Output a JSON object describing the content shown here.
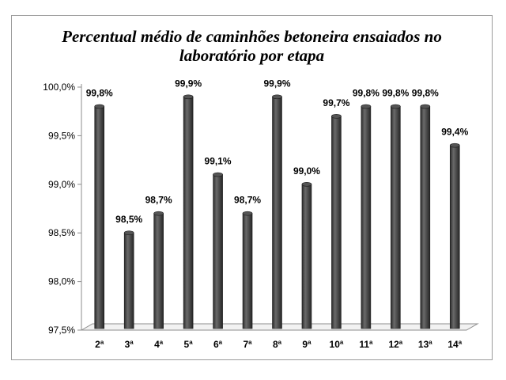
{
  "chart_data": {
    "type": "bar",
    "title_lines": [
      "Percentual médio de caminhões betoneira ensaiados no",
      "laboratório por etapa"
    ],
    "categories": [
      "2ª",
      "3ª",
      "4ª",
      "5ª",
      "6ª",
      "7ª",
      "8ª",
      "9ª",
      "10ª",
      "11ª",
      "12ª",
      "13ª",
      "14ª"
    ],
    "values": [
      99.8,
      98.5,
      98.7,
      99.9,
      99.1,
      98.7,
      99.9,
      99.0,
      99.7,
      99.8,
      99.8,
      99.8,
      99.4
    ],
    "data_labels": [
      "99,8%",
      "98,5%",
      "98,7%",
      "99,9%",
      "99,1%",
      "98,7%",
      "99,9%",
      "99,0%",
      "99,7%",
      "99,8%",
      "99,8%",
      "99,8%",
      "99,4%"
    ],
    "y_ticks": [
      97.5,
      98.0,
      98.5,
      99.0,
      99.5,
      100.0
    ],
    "y_tick_labels": [
      "97,5%",
      "98,0%",
      "98,5%",
      "99,0%",
      "99,5%",
      "100,0%"
    ],
    "ylim": [
      97.5,
      100.0
    ],
    "xlabel": "",
    "ylabel": "",
    "grid": false,
    "legend": "none",
    "bar_color": "#3c3c3c"
  }
}
